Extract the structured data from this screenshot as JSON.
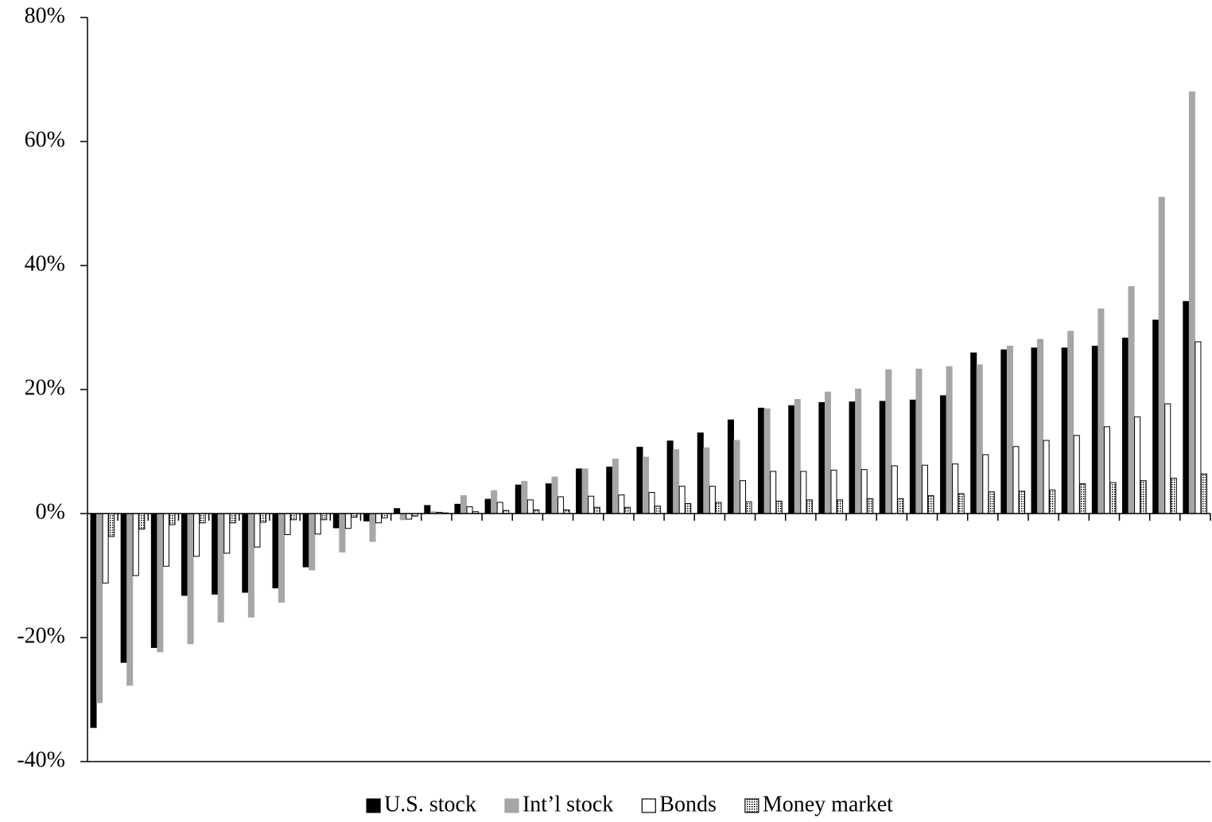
{
  "chart_data": {
    "type": "bar",
    "categories": [
      null,
      null,
      null,
      null,
      null,
      null,
      null,
      null,
      null,
      null,
      null,
      null,
      null,
      null,
      null,
      null,
      null,
      null,
      null,
      null,
      null,
      null,
      null,
      null,
      null,
      null,
      null,
      null,
      null,
      null,
      null,
      null,
      null,
      null,
      null,
      null,
      null
    ],
    "series": [
      {
        "name": "U.S. stock",
        "color": "#000000",
        "values": [
          -34.5,
          -24,
          -21.6,
          -13.2,
          -13,
          -12.7,
          -12,
          -8.6,
          -2.3,
          -1.2,
          0.8,
          1.3,
          1.5,
          2.3,
          4.6,
          4.8,
          7.2,
          7.5,
          10.7,
          11.7,
          13,
          15.1,
          17,
          17.4,
          17.9,
          18,
          18.1,
          18.3,
          19,
          25.9,
          26.4,
          26.7,
          26.7,
          27,
          28.3,
          31.2,
          34.2
        ]
      },
      {
        "name": "Int’l stock",
        "color": "#a6a6a6",
        "values": [
          -30.5,
          -27.7,
          -22.3,
          -21,
          -17.5,
          -16.7,
          -14.3,
          -9.1,
          -6.2,
          -4.5,
          -1,
          0.3,
          2.9,
          3.7,
          5.2,
          5.9,
          7.2,
          8.8,
          9.1,
          10.3,
          10.6,
          11.8,
          16.9,
          18.4,
          19.6,
          20.1,
          23.2,
          23.3,
          23.7,
          24,
          27,
          28.1,
          29.4,
          33,
          36.6,
          51,
          68
        ]
      },
      {
        "name": "Bonds",
        "color": "#ffffff",
        "values": [
          -11.2,
          -10,
          -8.5,
          -6.9,
          -6.4,
          -5.4,
          -3.4,
          -3.3,
          -2.4,
          -1.5,
          -0.9,
          0.2,
          1.1,
          1.8,
          2.2,
          2.7,
          2.8,
          3,
          3.4,
          4.4,
          4.4,
          5.3,
          6.8,
          6.8,
          7,
          7.1,
          7.7,
          7.8,
          8,
          9.5,
          10.8,
          11.8,
          12.6,
          14,
          15.6,
          17.7,
          27.7
        ]
      },
      {
        "name": "Money market",
        "color": "#ffffff",
        "fill_pattern": "dots",
        "values": [
          -3.7,
          -2.5,
          -1.8,
          -1.5,
          -1.5,
          -1.4,
          -1,
          -1,
          -0.6,
          -0.7,
          -0.4,
          0.1,
          0.3,
          0.5,
          0.6,
          0.6,
          1,
          1,
          1.2,
          1.6,
          1.8,
          1.9,
          2,
          2.2,
          2.2,
          2.4,
          2.4,
          2.9,
          3.2,
          3.5,
          3.6,
          3.8,
          4.8,
          5,
          5.3,
          5.7,
          6.4
        ]
      }
    ],
    "ylim": [
      -40,
      80
    ],
    "yticks": [
      {
        "value": -40,
        "label": "-40%"
      },
      {
        "value": -20,
        "label": "-20%"
      },
      {
        "value": 0,
        "label": "0%"
      },
      {
        "value": 20,
        "label": "20%"
      },
      {
        "value": 40,
        "label": "40%"
      },
      {
        "value": 60,
        "label": "60%"
      },
      {
        "value": 80,
        "label": "80%"
      }
    ],
    "legend": "bottom"
  }
}
